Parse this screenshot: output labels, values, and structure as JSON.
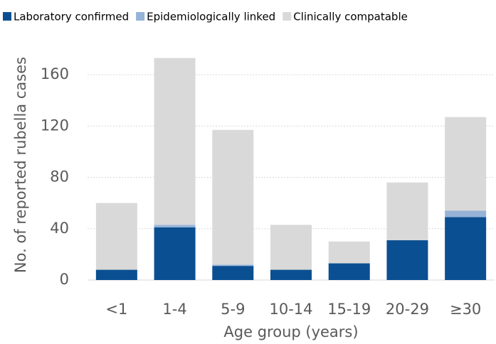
{
  "chart_data": {
    "type": "stacked_bar",
    "xlabel": "Age group (years)",
    "ylabel": "No. of reported rubella cases",
    "categories": [
      "<1",
      "1-4",
      "5-9",
      "10-14",
      "15-19",
      "20-29",
      "≥30"
    ],
    "series": [
      {
        "name": "Laboratory confirmed",
        "color": "#0a4f91",
        "values": [
          8,
          41,
          11,
          8,
          13,
          31,
          49
        ]
      },
      {
        "name": "Epidemiologically linked",
        "color": "#95b3d7",
        "values": [
          0,
          2,
          1,
          0,
          0,
          0,
          5
        ]
      },
      {
        "name": "Clinically compatable",
        "color": "#d9d9d9",
        "values": [
          52,
          130,
          105,
          35,
          17,
          45,
          73
        ]
      }
    ],
    "ylim": [
      0,
      180
    ],
    "yticks": [
      0,
      40,
      80,
      120,
      160
    ],
    "grid": true,
    "legend": "top"
  }
}
